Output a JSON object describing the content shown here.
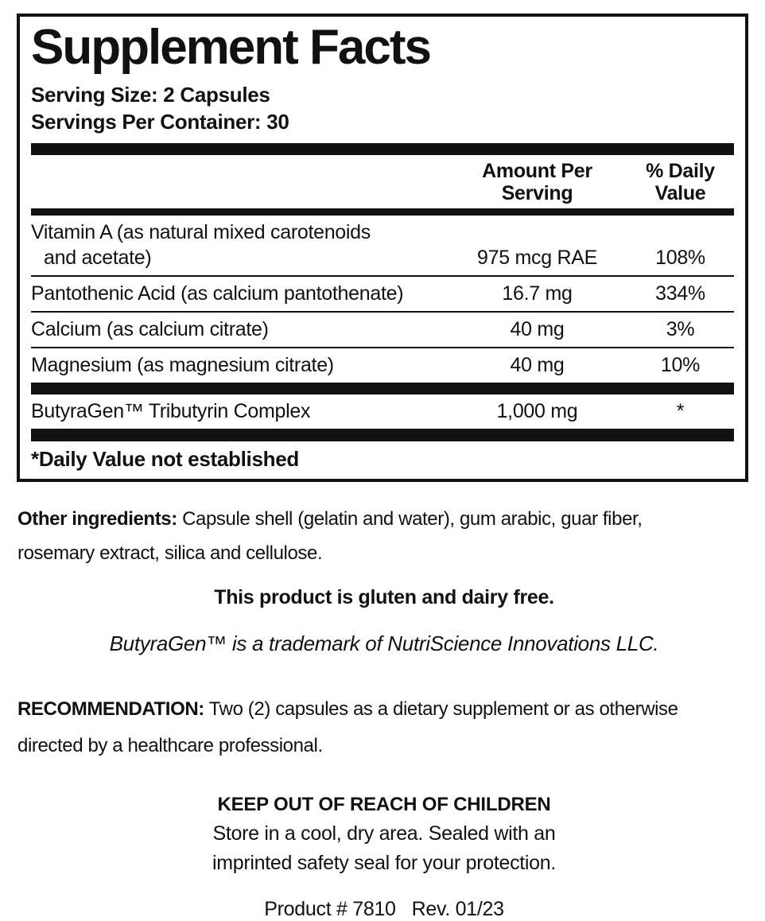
{
  "panel": {
    "title": "Supplement Facts",
    "serving_size": "Serving Size: 2 Capsules",
    "servings_per_container": "Servings Per Container: 30",
    "columns": {
      "amount": "Amount Per Serving",
      "dv": "% Daily Value"
    },
    "rows": [
      {
        "name_line1": "Vitamin A (as natural mixed carotenoids",
        "name_line2": "and acetate)",
        "amount": "975 mcg RAE",
        "dv": "108%"
      },
      {
        "name": "Pantothenic Acid (as calcium pantothenate)",
        "amount": "16.7 mg",
        "dv": "334%"
      },
      {
        "name": "Calcium (as calcium citrate)",
        "amount": "40 mg",
        "dv": "3%"
      },
      {
        "name": "Magnesium (as magnesium citrate)",
        "amount": "40 mg",
        "dv": "10%"
      }
    ],
    "blend_row": {
      "name": "ButyraGen™ Tributyrin Complex",
      "amount": "1,000 mg",
      "dv": "*"
    },
    "footnote": "*Daily Value not established"
  },
  "other_ingredients": {
    "label": "Other ingredients:",
    "line1_rest": " Capsule shell (gelatin and water), gum arabic, guar fiber,",
    "line2": "rosemary extract, silica and cellulose."
  },
  "gluten_statement": "This product is gluten and dairy free.",
  "trademark_statement": "ButyraGen™ is a trademark of NutriScience Innovations LLC.",
  "recommendation": {
    "label": "RECOMMENDATION:",
    "line1_rest": " Two (2) capsules as a dietary supplement or as otherwise",
    "line2": "directed by a healthcare professional."
  },
  "children_warning": "KEEP OUT OF REACH OF CHILDREN",
  "storage": {
    "line1": "Store in a cool, dry area. Sealed with an",
    "line2": "imprinted safety seal for your protection."
  },
  "product_info": {
    "product_number": "Product # 7810",
    "revision": "Rev. 01/23"
  },
  "colors": {
    "text": "#111111",
    "rule": "#111111",
    "background": "#ffffff"
  }
}
